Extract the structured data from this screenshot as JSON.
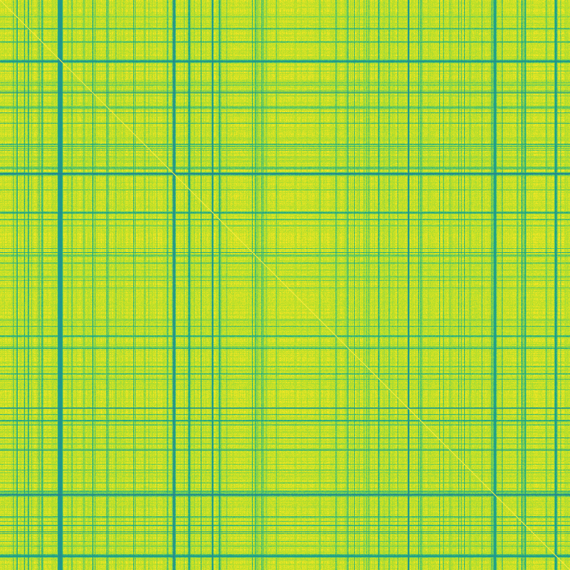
{
  "chart_data": {
    "type": "heatmap",
    "title": "",
    "xlabel": "",
    "ylabel": "",
    "grid": false,
    "legend": "none",
    "colormap": "viridis",
    "value_range": [
      0,
      1
    ],
    "diagonal_value": 1.0,
    "typical_value": 0.88,
    "matrix_size": 710,
    "row_features": {
      "strong_low_bands": [
        76,
        216,
        616,
        692
      ],
      "medium_low_bands": [
        35,
        52,
        133,
        208,
        264,
        273,
        318,
        418,
        508,
        524,
        612,
        654
      ],
      "minor_low_bands": [
        20,
        104,
        115,
        180,
        236,
        327,
        344,
        398,
        432,
        456,
        472,
        552,
        560,
        585,
        644,
        680
      ]
    },
    "column_features": {
      "strong_low_bands": [
        73,
        76,
        216,
        616,
        692
      ],
      "medium_low_bands": [
        35,
        52,
        133,
        208,
        264,
        273,
        318,
        418,
        508,
        524,
        612,
        654
      ],
      "minor_low_bands": [
        20,
        104,
        115,
        180,
        236,
        327,
        344,
        398,
        432,
        456,
        472,
        552,
        560,
        585,
        644,
        680
      ]
    },
    "palette": {
      "low": "#2a788e",
      "mid": "#22a884",
      "high": "#7ad151",
      "top": "#fde725"
    }
  }
}
